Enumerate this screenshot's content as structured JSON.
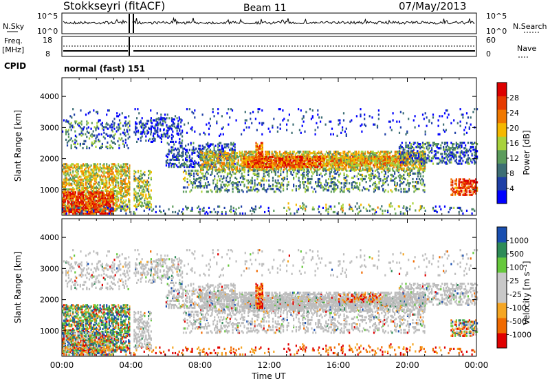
{
  "header": {
    "station": "Stokkseyri (fitACF)",
    "beam": "Beam 11",
    "date": "07/May/2013"
  },
  "summary_labels": {
    "nsky": "N.Sky",
    "nsearch": "N.Search",
    "freq": "Freq.",
    "freq_unit": "[MHz]",
    "nave": "Nave",
    "cpid": "CPID",
    "cpid_value": "normal (fast) 151"
  },
  "summary_ticks": {
    "noise_top": "10^5",
    "noise_bottom": "10^0",
    "freq_top": "18",
    "freq_bottom": "8",
    "nave_top": "60",
    "nave_bottom": "0"
  },
  "colors": {
    "power_scale": [
      "#0000ff",
      "#1e3fa6",
      "#3d6e74",
      "#5c9c5c",
      "#a8d23c",
      "#f5b800",
      "#f07800",
      "#e63a00",
      "#dd0000"
    ],
    "velocity_scale": [
      "#e00000",
      "#f06a00",
      "#f5a623",
      "#c8c8c8",
      "#c8c8c8",
      "#66c83c",
      "#2e8b57",
      "#1a4fb0"
    ],
    "ground_scatter": "#bdbdbd"
  },
  "chart_data": [
    {
      "type": "heatmap",
      "title": "Power",
      "xlabel": "Time UT",
      "ylabel": "Slant Range [km]",
      "x_ticks": [
        "00:00",
        "04:00",
        "08:00",
        "12:00",
        "16:00",
        "20:00",
        "00:00"
      ],
      "xlim_hours": [
        0,
        24
      ],
      "y_ticks": [
        1000,
        2000,
        3000,
        4000
      ],
      "ylim": [
        180,
        4600
      ],
      "colorbar_label": "Power [dB]",
      "colorbar_ticks": [
        "4",
        "8",
        "12",
        "16",
        "20",
        "24",
        "28"
      ],
      "colorbar_range": [
        0,
        30
      ]
    },
    {
      "type": "heatmap",
      "title": "Velocity",
      "xlabel": "Time UT",
      "ylabel": "Slant Range [km]",
      "x_ticks": [
        "00:00",
        "04:00",
        "08:00",
        "12:00",
        "16:00",
        "20:00",
        "00:00"
      ],
      "xlim_hours": [
        0,
        24
      ],
      "y_ticks": [
        1000,
        2000,
        3000,
        4000
      ],
      "ylim": [
        180,
        4600
      ],
      "colorbar_label": "Velocity [m s⁻¹]",
      "colorbar_ticks": [
        "1000",
        "500",
        "100",
        "25",
        "-25",
        "-100",
        "-500",
        "-1000"
      ]
    }
  ],
  "axis": {
    "time_label": "Time UT"
  }
}
